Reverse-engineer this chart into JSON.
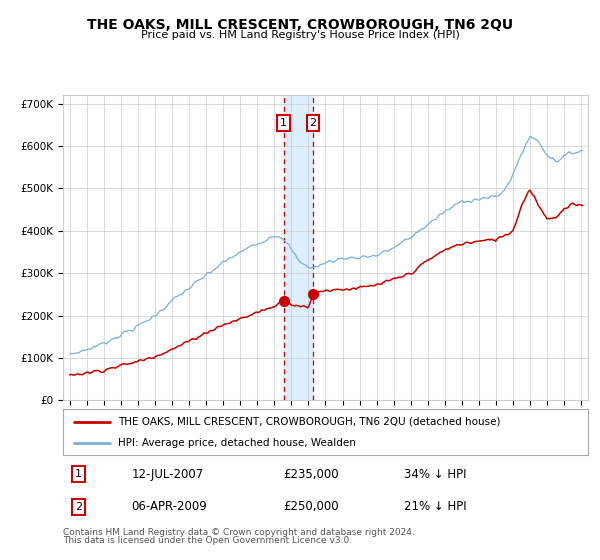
{
  "title": "THE OAKS, MILL CRESCENT, CROWBOROUGH, TN6 2QU",
  "subtitle": "Price paid vs. HM Land Registry's House Price Index (HPI)",
  "legend_line1": "THE OAKS, MILL CRESCENT, CROWBOROUGH, TN6 2QU (detached house)",
  "legend_line2": "HPI: Average price, detached house, Wealden",
  "annotation1_date": "12-JUL-2007",
  "annotation1_price": "£235,000",
  "annotation1_text": "34% ↓ HPI",
  "annotation2_date": "06-APR-2009",
  "annotation2_price": "£250,000",
  "annotation2_text": "21% ↓ HPI",
  "footer1": "Contains HM Land Registry data © Crown copyright and database right 2024.",
  "footer2": "This data is licensed under the Open Government Licence v3.0.",
  "hpi_color": "#7ab0d8",
  "price_color": "#cc0000",
  "marker_color": "#cc0000",
  "vline_color": "#cc0000",
  "highlight_color": "#ddeeff",
  "grid_color": "#cccccc",
  "bg_color": "#ffffff",
  "purchase1_year": 2007.54,
  "purchase1_price": 235000,
  "purchase2_year": 2009.27,
  "purchase2_price": 250000,
  "year_start": 1995,
  "year_end": 2025
}
